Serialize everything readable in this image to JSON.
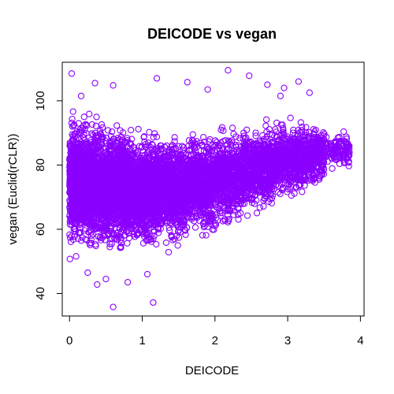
{
  "chart_data": {
    "type": "scatter",
    "title": "DEICODE vs vegan",
    "xlabel": "DEICODE",
    "ylabel": "vegan (Euclid(rCLR))",
    "xlim": [
      -0.1,
      4.05
    ],
    "ylim": [
      33,
      112
    ],
    "x_ticks": [
      0,
      1,
      2,
      3,
      4
    ],
    "y_ticks": [
      40,
      60,
      80,
      100
    ],
    "x_tick_labels": [
      "0",
      "1",
      "2",
      "3",
      "4"
    ],
    "y_tick_labels": [
      "40",
      "60",
      "80",
      "100"
    ],
    "point_color": "#8b00ff",
    "marker": "open-circle",
    "grid": false,
    "legend": "none",
    "points": [
      {
        "x": 0.03,
        "y": 108.5
      },
      {
        "x": 2.18,
        "y": 109.5
      },
      {
        "x": 2.47,
        "y": 107.8
      },
      {
        "x": 3.15,
        "y": 106.0
      },
      {
        "x": 1.2,
        "y": 107.0
      },
      {
        "x": 0.16,
        "y": 101.5
      },
      {
        "x": 0.35,
        "y": 105.5
      },
      {
        "x": 0.6,
        "y": 104.8
      },
      {
        "x": 1.62,
        "y": 105.8
      },
      {
        "x": 2.72,
        "y": 105.0
      },
      {
        "x": 2.95,
        "y": 104.0
      },
      {
        "x": 3.3,
        "y": 102.5
      },
      {
        "x": 1.9,
        "y": 103.5
      },
      {
        "x": 2.9,
        "y": 101.5
      },
      {
        "x": 0.6,
        "y": 35.8
      },
      {
        "x": 1.15,
        "y": 37.2
      },
      {
        "x": 0.38,
        "y": 42.8
      },
      {
        "x": 0.8,
        "y": 43.5
      },
      {
        "x": 0.5,
        "y": 44.5
      },
      {
        "x": 1.07,
        "y": 46.0
      },
      {
        "x": 0.25,
        "y": 46.5
      },
      {
        "x": 3.85,
        "y": 84.0
      },
      {
        "x": 3.7,
        "y": 86.5
      },
      {
        "x": 3.78,
        "y": 81.0
      }
    ],
    "density": [
      {
        "x0": 0.0,
        "x1": 0.4,
        "ymin": 50,
        "ymax": 98,
        "n": 1400
      },
      {
        "x0": 0.4,
        "x1": 0.8,
        "ymin": 50,
        "ymax": 96,
        "n": 1200
      },
      {
        "x0": 0.8,
        "x1": 1.2,
        "ymin": 51,
        "ymax": 94,
        "n": 1000
      },
      {
        "x0": 1.2,
        "x1": 1.6,
        "ymin": 53,
        "ymax": 92,
        "n": 850
      },
      {
        "x0": 1.6,
        "x1": 2.0,
        "ymin": 56,
        "ymax": 92,
        "n": 750
      },
      {
        "x0": 2.0,
        "x1": 2.4,
        "ymin": 60,
        "ymax": 93,
        "n": 650
      },
      {
        "x0": 2.4,
        "x1": 2.8,
        "ymin": 64,
        "ymax": 94,
        "n": 600
      },
      {
        "x0": 2.8,
        "x1": 3.2,
        "ymin": 68,
        "ymax": 95,
        "n": 550
      },
      {
        "x0": 3.2,
        "x1": 3.5,
        "ymin": 72,
        "ymax": 94,
        "n": 350
      },
      {
        "x0": 3.5,
        "x1": 3.85,
        "ymin": 78,
        "ymax": 91,
        "n": 120
      }
    ]
  }
}
